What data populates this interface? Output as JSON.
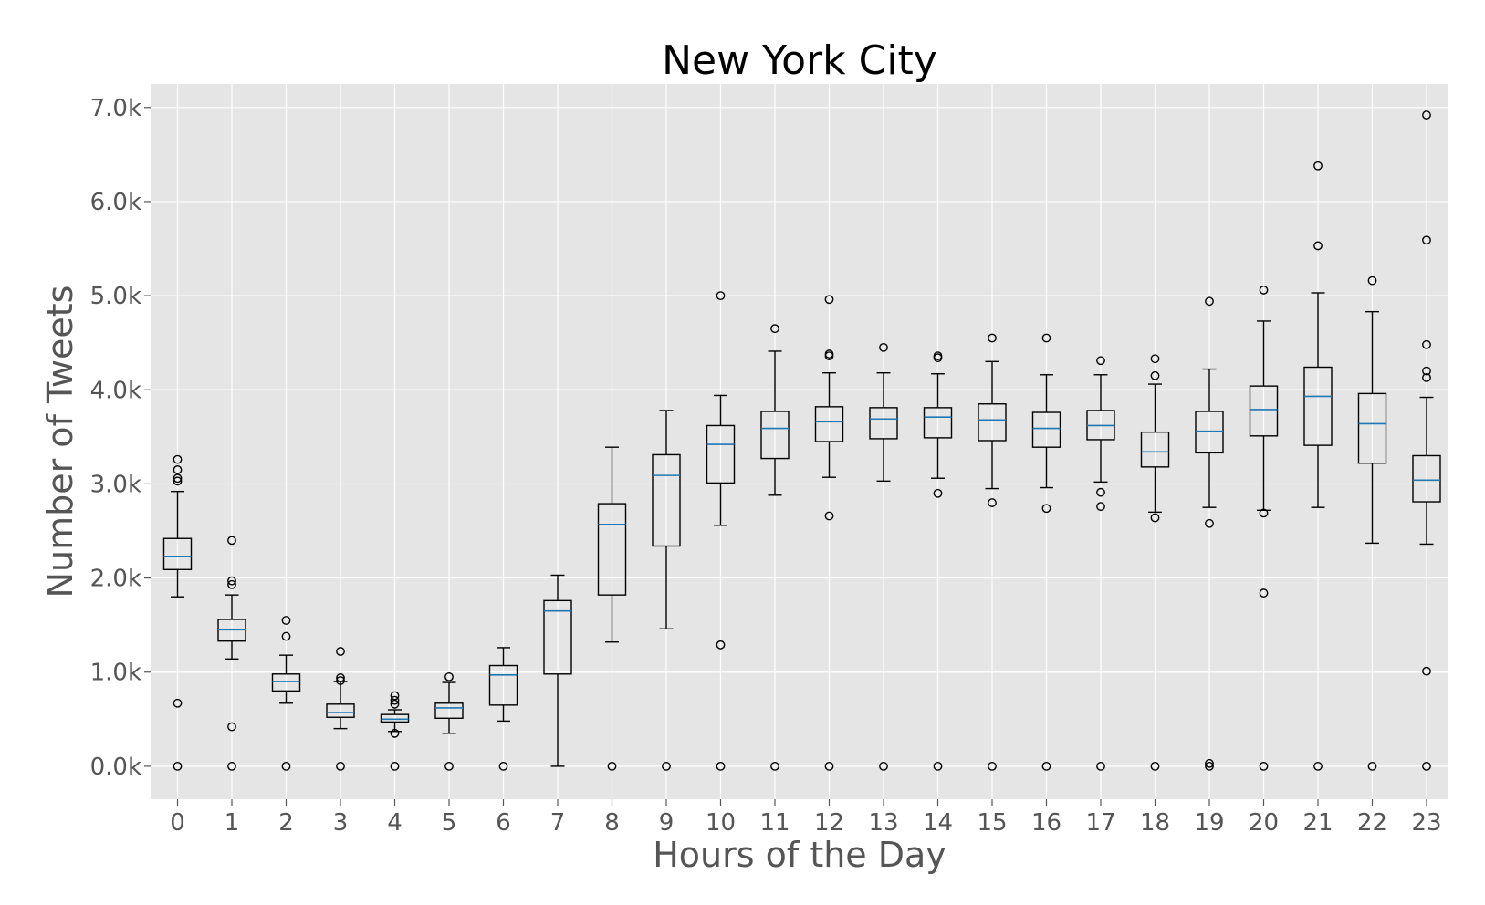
{
  "chart_data": {
    "type": "box",
    "title": "New York City",
    "xlabel": "Hours of the Day",
    "ylabel": "Number of Tweets",
    "ylim": [
      -350,
      7250
    ],
    "yticks": [
      {
        "value": 0,
        "label": "0.0k"
      },
      {
        "value": 1000,
        "label": "1.0k"
      },
      {
        "value": 2000,
        "label": "2.0k"
      },
      {
        "value": 3000,
        "label": "3.0k"
      },
      {
        "value": 4000,
        "label": "4.0k"
      },
      {
        "value": 5000,
        "label": "5.0k"
      },
      {
        "value": 6000,
        "label": "6.0k"
      },
      {
        "value": 7000,
        "label": "7.0k"
      }
    ],
    "grid": true,
    "colors": {
      "background": "#E5E5E5",
      "grid": "#FFFFFF",
      "box": "#000000",
      "median": "#1F77B4"
    },
    "categories": [
      "0",
      "1",
      "2",
      "3",
      "4",
      "5",
      "6",
      "7",
      "8",
      "9",
      "10",
      "11",
      "12",
      "13",
      "14",
      "15",
      "16",
      "17",
      "18",
      "19",
      "20",
      "21",
      "22",
      "23"
    ],
    "boxes": [
      {
        "whisker_low": 1800,
        "q1": 2090,
        "median": 2230,
        "q3": 2420,
        "whisker_high": 2920,
        "outliers": [
          3260,
          3150,
          3060,
          3030,
          670,
          0
        ]
      },
      {
        "whisker_low": 1140,
        "q1": 1330,
        "median": 1450,
        "q3": 1560,
        "whisker_high": 1820,
        "outliers": [
          2400,
          1970,
          1930,
          420,
          0
        ]
      },
      {
        "whisker_low": 670,
        "q1": 800,
        "median": 900,
        "q3": 980,
        "whisker_high": 1180,
        "outliers": [
          1550,
          1380,
          0
        ]
      },
      {
        "whisker_low": 400,
        "q1": 520,
        "median": 570,
        "q3": 660,
        "whisker_high": 900,
        "outliers": [
          1220,
          940,
          910,
          0
        ]
      },
      {
        "whisker_low": 370,
        "q1": 470,
        "median": 500,
        "q3": 550,
        "whisker_high": 600,
        "outliers": [
          750,
          700,
          660,
          350,
          0
        ]
      },
      {
        "whisker_low": 350,
        "q1": 510,
        "median": 620,
        "q3": 670,
        "whisker_high": 890,
        "outliers": [
          950,
          0
        ]
      },
      {
        "whisker_low": 480,
        "q1": 650,
        "median": 970,
        "q3": 1070,
        "whisker_high": 1260,
        "outliers": [
          0
        ]
      },
      {
        "whisker_low": 0,
        "q1": 980,
        "median": 1650,
        "q3": 1760,
        "whisker_high": 2030,
        "outliers": []
      },
      {
        "whisker_low": 1320,
        "q1": 1820,
        "median": 2570,
        "q3": 2790,
        "whisker_high": 3390,
        "outliers": [
          0
        ]
      },
      {
        "whisker_low": 1460,
        "q1": 2340,
        "median": 3090,
        "q3": 3310,
        "whisker_high": 3780,
        "outliers": [
          0
        ]
      },
      {
        "whisker_low": 2560,
        "q1": 3010,
        "median": 3420,
        "q3": 3620,
        "whisker_high": 3940,
        "outliers": [
          5000,
          1290,
          0
        ]
      },
      {
        "whisker_low": 2880,
        "q1": 3270,
        "median": 3590,
        "q3": 3770,
        "whisker_high": 4410,
        "outliers": [
          4650,
          0
        ]
      },
      {
        "whisker_low": 3070,
        "q1": 3450,
        "median": 3660,
        "q3": 3820,
        "whisker_high": 4180,
        "outliers": [
          4960,
          4380,
          4360,
          2660,
          0
        ]
      },
      {
        "whisker_low": 3030,
        "q1": 3480,
        "median": 3690,
        "q3": 3810,
        "whisker_high": 4180,
        "outliers": [
          4450,
          0
        ]
      },
      {
        "whisker_low": 3060,
        "q1": 3490,
        "median": 3710,
        "q3": 3810,
        "whisker_high": 4170,
        "outliers": [
          4360,
          4340,
          2900,
          0
        ]
      },
      {
        "whisker_low": 2950,
        "q1": 3460,
        "median": 3680,
        "q3": 3850,
        "whisker_high": 4300,
        "outliers": [
          4550,
          2800,
          0
        ]
      },
      {
        "whisker_low": 2960,
        "q1": 3390,
        "median": 3590,
        "q3": 3760,
        "whisker_high": 4160,
        "outliers": [
          4550,
          2740,
          0
        ]
      },
      {
        "whisker_low": 3020,
        "q1": 3470,
        "median": 3620,
        "q3": 3780,
        "whisker_high": 4160,
        "outliers": [
          4310,
          2910,
          2760,
          0
        ]
      },
      {
        "whisker_low": 2700,
        "q1": 3180,
        "median": 3340,
        "q3": 3550,
        "whisker_high": 4060,
        "outliers": [
          4330,
          4150,
          2640,
          0
        ]
      },
      {
        "whisker_low": 2750,
        "q1": 3330,
        "median": 3560,
        "q3": 3770,
        "whisker_high": 4220,
        "outliers": [
          4940,
          2580,
          30,
          0
        ]
      },
      {
        "whisker_low": 2720,
        "q1": 3510,
        "median": 3790,
        "q3": 4040,
        "whisker_high": 4730,
        "outliers": [
          5060,
          2690,
          1840,
          0
        ]
      },
      {
        "whisker_low": 2750,
        "q1": 3410,
        "median": 3930,
        "q3": 4240,
        "whisker_high": 5030,
        "outliers": [
          6380,
          5530,
          0
        ]
      },
      {
        "whisker_low": 2370,
        "q1": 3220,
        "median": 3640,
        "q3": 3960,
        "whisker_high": 4830,
        "outliers": [
          5160,
          0
        ]
      },
      {
        "whisker_low": 2360,
        "q1": 2810,
        "median": 3040,
        "q3": 3300,
        "whisker_high": 3920,
        "outliers": [
          6920,
          5590,
          4480,
          4200,
          4130,
          1010,
          0
        ]
      }
    ]
  }
}
